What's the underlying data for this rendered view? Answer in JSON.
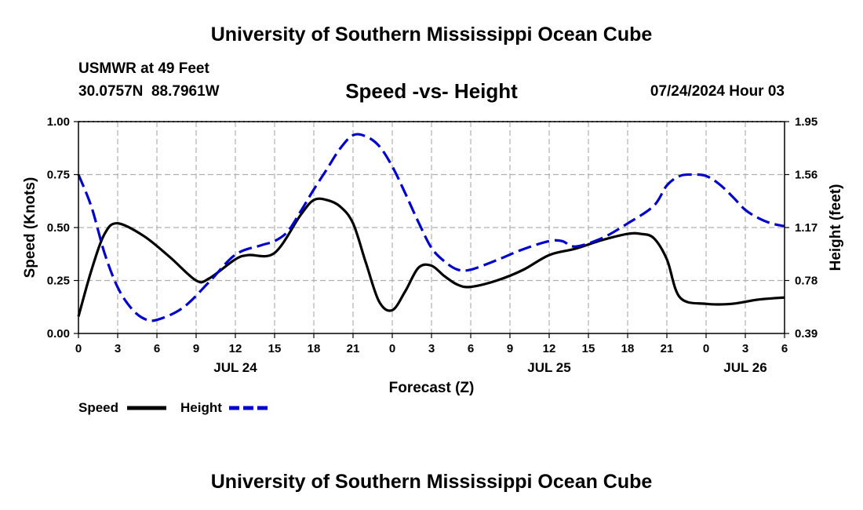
{
  "header": {
    "title": "University of Southern Mississippi Ocean Cube",
    "station": "USMWR at 49 Feet",
    "coordinates": "30.0757N  88.7961W",
    "date": "07/24/2024 Hour 03",
    "footer_title": "University of Southern Mississippi Ocean Cube"
  },
  "chart_data": {
    "type": "line",
    "title": "Speed -vs- Height",
    "xlabel": "Forecast (Z)",
    "ylabel": "Speed (Knots)",
    "y2label": "Height (feet)",
    "xlim": [
      0,
      54
    ],
    "ylim": [
      0,
      1.0
    ],
    "y2lim": [
      0.39,
      1.95
    ],
    "x_ticks": [
      0,
      3,
      6,
      9,
      12,
      15,
      18,
      21,
      24,
      27,
      30,
      33,
      36,
      39,
      42,
      45,
      48,
      51,
      54
    ],
    "x_tick_labels": [
      "0",
      "3",
      "6",
      "9",
      "12",
      "15",
      "18",
      "21",
      "0",
      "3",
      "6",
      "9",
      "12",
      "15",
      "18",
      "21",
      "0",
      "3",
      "6"
    ],
    "date_labels": [
      {
        "label": "JUL 24",
        "x": 12
      },
      {
        "label": "JUL 25",
        "x": 36
      },
      {
        "label": "JUL 26",
        "x": 51
      }
    ],
    "y_ticks": [
      0,
      0.25,
      0.5,
      0.75,
      1.0
    ],
    "y_tick_labels": [
      "0.00",
      "0.25",
      "0.50",
      "0.75",
      "1.00"
    ],
    "y2_ticks": [
      0.39,
      0.78,
      1.17,
      1.56,
      1.95
    ],
    "y2_tick_labels": [
      "0.39",
      "0.78",
      "1.17",
      "1.56",
      "1.95"
    ],
    "grid": true,
    "legend_position": "bottom-left",
    "series": [
      {
        "name": "Speed",
        "axis": "left",
        "color": "#000000",
        "style": "solid",
        "x": [
          0,
          1,
          2,
          3,
          5,
          7,
          9,
          10,
          12,
          13,
          15,
          17,
          18,
          19,
          20,
          21,
          22,
          23,
          24,
          25,
          26,
          27,
          28,
          29,
          30,
          32,
          34,
          36,
          38,
          40,
          42,
          43,
          44,
          45,
          46,
          48,
          50,
          52,
          54
        ],
        "values": [
          0.08,
          0.3,
          0.47,
          0.52,
          0.46,
          0.36,
          0.25,
          0.26,
          0.35,
          0.37,
          0.38,
          0.56,
          0.63,
          0.63,
          0.6,
          0.52,
          0.33,
          0.15,
          0.11,
          0.2,
          0.31,
          0.32,
          0.27,
          0.23,
          0.22,
          0.25,
          0.3,
          0.37,
          0.4,
          0.44,
          0.47,
          0.47,
          0.45,
          0.35,
          0.17,
          0.14,
          0.14,
          0.16,
          0.17
        ]
      },
      {
        "name": "Height",
        "axis": "right",
        "color": "#0000cc",
        "style": "dashed",
        "x": [
          0,
          1,
          2,
          3,
          4,
          5,
          6,
          8,
          10,
          12,
          14,
          15,
          16,
          17,
          18,
          19,
          20,
          21,
          22,
          23,
          24,
          25,
          26,
          27,
          28,
          29,
          30,
          32,
          34,
          36,
          37,
          38,
          40,
          42,
          44,
          45,
          46,
          47,
          48,
          49,
          50,
          51,
          52,
          53,
          54
        ],
        "values": [
          1.56,
          1.32,
          0.98,
          0.73,
          0.58,
          0.5,
          0.49,
          0.58,
          0.77,
          0.97,
          1.04,
          1.07,
          1.14,
          1.29,
          1.45,
          1.6,
          1.75,
          1.85,
          1.84,
          1.77,
          1.62,
          1.42,
          1.21,
          1.02,
          0.92,
          0.86,
          0.86,
          0.93,
          1.01,
          1.07,
          1.07,
          1.03,
          1.09,
          1.2,
          1.33,
          1.48,
          1.55,
          1.56,
          1.55,
          1.49,
          1.4,
          1.3,
          1.24,
          1.2,
          1.18
        ]
      }
    ]
  }
}
